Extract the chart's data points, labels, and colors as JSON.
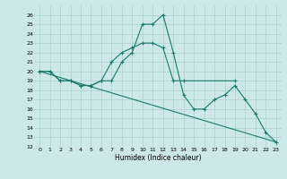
{
  "xlabel": "Humidex (Indice chaleur)",
  "background_color": "#cce8e8",
  "grid_color": "#aacfcf",
  "line_color": "#1a7a6e",
  "series1_x": [
    0,
    1,
    2,
    3,
    4,
    5,
    6,
    7,
    8,
    9,
    10,
    11,
    12,
    13,
    14,
    15,
    16,
    17,
    18,
    19,
    20,
    21,
    22,
    23
  ],
  "series1_y": [
    20,
    20,
    19,
    19,
    18.5,
    18.5,
    19,
    19,
    21,
    22,
    25,
    25,
    26,
    22,
    17.5,
    16,
    16,
    17,
    17.5,
    18.5,
    17,
    15.5,
    13.5,
    12.5
  ],
  "series2_x": [
    0,
    1,
    2,
    3,
    4,
    5,
    6,
    7,
    8,
    9,
    10,
    11,
    12,
    13,
    14,
    19
  ],
  "series2_y": [
    20,
    20,
    19,
    19,
    18.5,
    18.5,
    19,
    21,
    22,
    22.5,
    23,
    23,
    22.5,
    19,
    19,
    19
  ],
  "series3_x": [
    0,
    23
  ],
  "series3_y": [
    20,
    12.5
  ],
  "ylim": [
    12,
    27
  ],
  "xlim": [
    -0.5,
    23.5
  ],
  "yticks": [
    12,
    13,
    14,
    15,
    16,
    17,
    18,
    19,
    20,
    21,
    22,
    23,
    24,
    25,
    26
  ],
  "xticks": [
    0,
    1,
    2,
    3,
    4,
    5,
    6,
    7,
    8,
    9,
    10,
    11,
    12,
    13,
    14,
    15,
    16,
    17,
    18,
    19,
    20,
    21,
    22,
    23
  ]
}
